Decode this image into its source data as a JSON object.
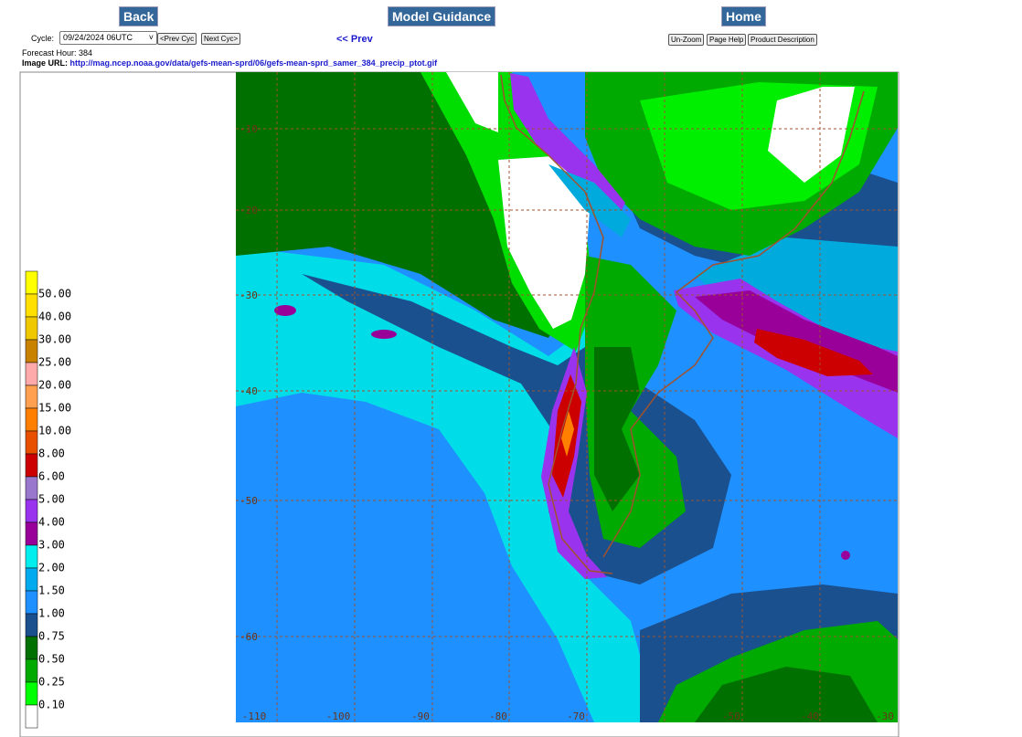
{
  "header": {
    "back": "Back",
    "model_guidance": "Model Guidance",
    "home": "Home"
  },
  "controls": {
    "cycle_label": "Cycle:",
    "cycle_value": "09/24/2024 06UTC",
    "prev_cyc": "<Prev Cyc",
    "next_cyc": "Next Cyc>",
    "prev": "<< Prev",
    "unzoom": "Un-Zoom",
    "page_help": "Page Help",
    "product_description": "Product Description"
  },
  "info": {
    "forecast_hour": "Forecast Hour: 384",
    "image_url_label": "Image URL:",
    "image_url": "http://mag.ncep.noaa.gov/data/gefs-mean-sprd/06/gefs-mean-sprd_samer_384_precip_ptot.gif"
  },
  "legend": {
    "labels": [
      "50.00",
      "40.00",
      "30.00",
      "25.00",
      "20.00",
      "15.00",
      "10.00",
      "8.00",
      "6.00",
      "5.00",
      "4.00",
      "3.00",
      "2.00",
      "1.50",
      "1.00",
      "0.75",
      "0.50",
      "0.25",
      "0.10"
    ],
    "colors": [
      "#ffff00",
      "#ffe000",
      "#f0c800",
      "#c88200",
      "#ffaaaa",
      "#ffa050",
      "#ff8000",
      "#e85000",
      "#cc0000",
      "#9977cc",
      "#9933ee",
      "#990099",
      "#00eeee",
      "#00aaee",
      "#1e90ff",
      "#1a508e",
      "#007000",
      "#00aa00",
      "#00ff00",
      "#ffffff"
    ]
  },
  "map": {
    "lat_labels": [
      "-10",
      "-20",
      "-30",
      "-40",
      "-50",
      "-60"
    ],
    "lon_labels": [
      "-110",
      "-100",
      "-90",
      "-80",
      "-70",
      "-50",
      "-40",
      "-30"
    ]
  }
}
